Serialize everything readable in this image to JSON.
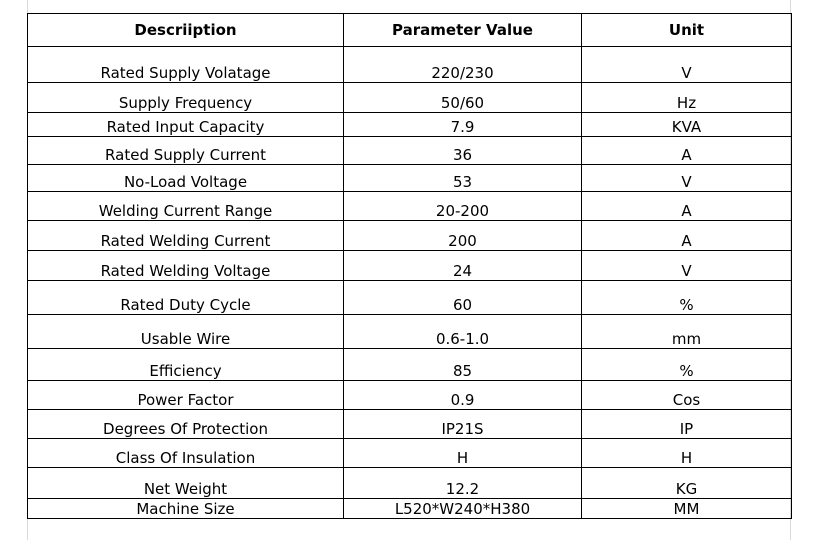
{
  "table": {
    "headers": [
      "Descriiption",
      "Parameter Value",
      "Unit"
    ],
    "rows": [
      [
        "Rated Supply Volatage",
        "220/230",
        "V"
      ],
      [
        "Supply Frequency",
        "50/60",
        "Hz"
      ],
      [
        "Rated Input Capacity",
        "7.9",
        "KVA"
      ],
      [
        "Rated Supply Current",
        "36",
        "A"
      ],
      [
        "No-Load Voltage",
        "53",
        "V"
      ],
      [
        "Welding Current Range",
        "20-200",
        "A"
      ],
      [
        "Rated Welding Current",
        "200",
        "A"
      ],
      [
        "Rated Welding Voltage",
        "24",
        "V"
      ],
      [
        "Rated Duty Cycle",
        "60",
        "%"
      ],
      [
        "Usable Wire",
        "0.6-1.0",
        "mm"
      ],
      [
        "Efficiency",
        "85",
        "%"
      ],
      [
        "Power Factor",
        "0.9",
        "Cos"
      ],
      [
        "Degrees Of Protection",
        "IP21S",
        "IP"
      ],
      [
        "Class Of Insulation",
        "H",
        "H"
      ],
      [
        "Net Weight",
        "12.2",
        "KG"
      ],
      [
        "Machine Size",
        "L520*W240*H380",
        "MM"
      ]
    ]
  },
  "colors": {
    "border": "#000000",
    "text": "#000000",
    "frame": "#d9d9d9"
  }
}
